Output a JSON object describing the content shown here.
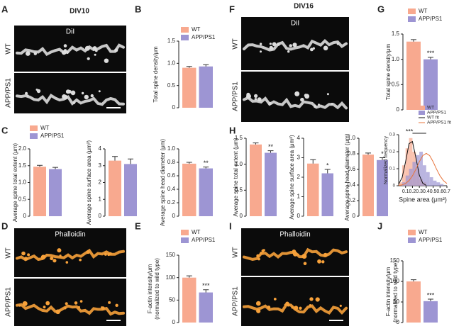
{
  "image_panels": [
    {
      "letter": "A",
      "title": "DIV10",
      "stain": "DiI",
      "rows": [
        "WT",
        "APP/PS1"
      ]
    },
    {
      "letter": "D",
      "stain": "Phalloidin",
      "rows": [
        "WT",
        "APP/PS1"
      ]
    },
    {
      "letter": "F",
      "title": "DIV16",
      "stain": "DiI",
      "rows": [
        "WT",
        "APP/PS1"
      ]
    },
    {
      "letter": "I",
      "stain": "Phalloidin",
      "rows": [
        "WT",
        "APP/PS1"
      ]
    }
  ],
  "chart_data": [
    {
      "type": "bar",
      "letter": "B",
      "ylabel": "Total spine density/μm",
      "legend": true,
      "series": [
        {
          "name": "WT",
          "color": "#f8a98f",
          "values": [
            0.9
          ],
          "errors": [
            0.03
          ]
        },
        {
          "name": "APP/PS1",
          "color": "#9d95d3",
          "values": [
            0.93
          ],
          "errors": [
            0.04
          ]
        }
      ],
      "ylim": [
        0,
        1.5
      ],
      "yticks": [
        0,
        0.5,
        {
          "value": 1,
          "label": "1.0"
        },
        1.5
      ]
    },
    {
      "type": "bar",
      "letter": "C",
      "ylabel": "Average spine total extent (μm)",
      "legend": true,
      "series": [
        {
          "name": "WT",
          "color": "#f8a98f",
          "values": [
            1.47
          ],
          "errors": [
            0.04
          ]
        },
        {
          "name": "APP/PS1",
          "color": "#9d95d3",
          "values": [
            1.4
          ],
          "errors": [
            0.05
          ]
        }
      ],
      "ylim": [
        0,
        2
      ],
      "yticks": [
        0,
        0.5,
        {
          "value": 1,
          "label": "1.0"
        },
        1.5,
        {
          "value": 2,
          "label": "2.0"
        }
      ]
    },
    {
      "type": "bar",
      "ylabel": "Average spine surface area (μm²)",
      "series": [
        {
          "color": "#f8a98f",
          "values": [
            3.3
          ],
          "errors": [
            0.25
          ]
        },
        {
          "color": "#9d95d3",
          "values": [
            3.1
          ],
          "errors": [
            0.3
          ]
        }
      ],
      "ylim": [
        0,
        4
      ],
      "yticks": [
        0,
        1,
        2,
        3,
        4
      ]
    },
    {
      "type": "bar",
      "ylabel": "Average spine head diameter (μm)",
      "annotation": "**",
      "series": [
        {
          "color": "#f8a98f",
          "values": [
            0.78
          ],
          "errors": [
            0.02
          ]
        },
        {
          "color": "#9d95d3",
          "values": [
            0.71
          ],
          "errors": [
            0.02
          ]
        }
      ],
      "ylim": [
        0,
        1
      ],
      "yticks": [
        0,
        0.2,
        0.4,
        0.6,
        0.8,
        {
          "value": 1,
          "label": "1.0"
        }
      ]
    },
    {
      "type": "bar",
      "letter": "E",
      "ylabel": [
        "F-actin intensity/μm",
        "(normalized to wild type)"
      ],
      "legend": true,
      "annotation": "***",
      "series": [
        {
          "name": "WT",
          "color": "#f8a98f",
          "values": [
            100
          ],
          "errors": [
            4
          ]
        },
        {
          "name": "APP/PS1",
          "color": "#9d95d3",
          "values": [
            67
          ],
          "errors": [
            6
          ]
        }
      ],
      "ylim": [
        0,
        150
      ],
      "yticks": [
        0,
        50,
        100,
        150
      ]
    },
    {
      "type": "bar",
      "letter": "G",
      "ylabel": "Total spine density/μm",
      "legend": true,
      "annotation": "***",
      "series": [
        {
          "name": "WT",
          "color": "#f8a98f",
          "values": [
            1.35
          ],
          "errors": [
            0.04
          ]
        },
        {
          "name": "APP/PS1",
          "color": "#9d95d3",
          "values": [
            1.0
          ],
          "errors": [
            0.04
          ]
        }
      ],
      "ylim": [
        0,
        1.5
      ],
      "yticks": [
        0,
        0.5,
        {
          "value": 1,
          "label": "1.0"
        },
        1.5
      ]
    },
    {
      "type": "bar",
      "letter": "H",
      "ylabel": "Average spine total extent (μm)",
      "annotation": "**",
      "series": [
        {
          "color": "#f8a98f",
          "values": [
            1.38
          ],
          "errors": [
            0.03
          ]
        },
        {
          "color": "#9d95d3",
          "values": [
            1.22
          ],
          "errors": [
            0.04
          ]
        }
      ],
      "ylim": [
        0,
        1.5
      ],
      "yticks": [
        0,
        0.5,
        {
          "value": 1,
          "label": "1.0"
        },
        1.5
      ]
    },
    {
      "type": "bar",
      "ylabel": "Average spine surface area (μm²)",
      "annotation": "*",
      "series": [
        {
          "color": "#f8a98f",
          "values": [
            2.7
          ],
          "errors": [
            0.2
          ]
        },
        {
          "color": "#9d95d3",
          "values": [
            2.2
          ],
          "errors": [
            0.2
          ]
        }
      ],
      "ylim": [
        0,
        4
      ],
      "yticks": [
        0,
        1,
        2,
        3,
        4
      ]
    },
    {
      "type": "bar",
      "ylabel": "Average spine head diameter (μm)",
      "annotation": "*",
      "series": [
        {
          "color": "#f8a98f",
          "values": [
            0.79
          ],
          "errors": [
            0.02
          ]
        },
        {
          "color": "#9d95d3",
          "values": [
            0.72
          ],
          "errors": [
            0.03
          ]
        }
      ],
      "ylim": [
        0,
        1
      ],
      "yticks": [
        0,
        0.2,
        0.4,
        0.6,
        0.8,
        {
          "value": 1,
          "label": "1.0"
        }
      ]
    },
    {
      "type": "histogram",
      "xlabel": "Spine area (μm²)",
      "ylabel": "Normalized frequency",
      "annotation": "***",
      "bins": [
        0,
        0.05,
        0.1,
        0.15,
        0.2,
        0.25,
        0.3,
        0.35,
        0.4,
        0.45,
        0.5,
        0.55,
        0.6,
        0.65,
        0.7
      ],
      "series": [
        {
          "name": "WT",
          "color": "#f8a98f",
          "values": [
            0.02,
            0.12,
            0.22,
            0.28,
            0.2,
            0.1,
            0.04,
            0.02,
            0,
            0,
            0,
            0,
            0,
            0
          ]
        },
        {
          "name": "APP/PS1",
          "color": "#9d95d3",
          "values": [
            0,
            0.02,
            0.06,
            0.1,
            0.14,
            0.18,
            0.2,
            0.12,
            0.08,
            0.05,
            0.03,
            0.02,
            0.01,
            0
          ]
        }
      ],
      "fits": [
        {
          "name": "WT fit",
          "color": "#111111",
          "x": [
            0,
            0.05,
            0.1,
            0.15,
            0.2,
            0.25,
            0.3,
            0.35,
            0.4
          ],
          "values": [
            0.01,
            0.048,
            0.14,
            0.247,
            0.26,
            0.164,
            0.062,
            0.014,
            0.002
          ]
        },
        {
          "name": "APP/PS1 fit",
          "color": "#e8743b",
          "x": [
            0,
            0.05,
            0.1,
            0.15,
            0.2,
            0.25,
            0.3,
            0.35,
            0.4,
            0.45,
            0.5,
            0.55,
            0.6,
            0.65,
            0.7
          ],
          "values": [
            0.002,
            0.005,
            0.013,
            0.03,
            0.058,
            0.097,
            0.141,
            0.177,
            0.19,
            0.177,
            0.141,
            0.097,
            0.058,
            0.03,
            0.013
          ]
        }
      ],
      "xlim": [
        0,
        0.7
      ],
      "xticks": [
        0.1,
        0.2,
        0.3,
        0.4,
        0.5,
        0.6,
        0.7
      ],
      "ylim": [
        0,
        0.3
      ],
      "yticks": [
        0,
        0.1,
        0.2,
        0.3
      ]
    },
    {
      "type": "bar",
      "letter": "J",
      "ylabel": [
        "F-actin intensity/μm",
        "(normalized to wild type)"
      ],
      "legend": true,
      "annotation": "***",
      "series": [
        {
          "name": "WT",
          "color": "#f8a98f",
          "values": [
            100
          ],
          "errors": [
            4
          ]
        },
        {
          "name": "APP/PS1",
          "color": "#9d95d3",
          "values": [
            52
          ],
          "errors": [
            5
          ]
        }
      ],
      "ylim": [
        0,
        150
      ],
      "yticks": [
        0,
        50,
        100,
        150
      ]
    }
  ]
}
